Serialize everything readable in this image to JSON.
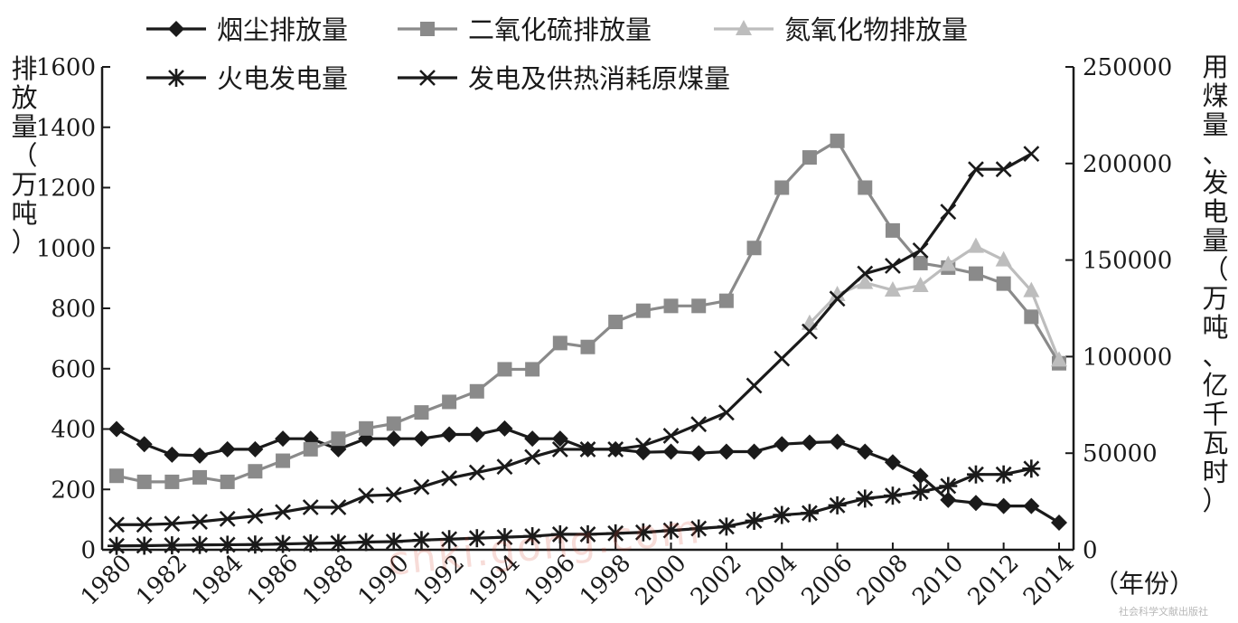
{
  "chart_data": {
    "type": "line",
    "x": [
      1980,
      1981,
      1982,
      1983,
      1984,
      1985,
      1986,
      1987,
      1988,
      1989,
      1990,
      1991,
      1992,
      1993,
      1994,
      1995,
      1996,
      1997,
      1998,
      1999,
      2000,
      2001,
      2002,
      2003,
      2004,
      2005,
      2006,
      2007,
      2008,
      2009,
      2010,
      2011,
      2012,
      2013,
      2014
    ],
    "x_ticks": [
      "1980",
      "1982",
      "1984",
      "1986",
      "1988",
      "1990",
      "1992",
      "1994",
      "1996",
      "1998",
      "2000",
      "2002",
      "2004",
      "2006",
      "2008",
      "2010",
      "2012",
      "2014"
    ],
    "x_unit": "（年份）",
    "left_axis": {
      "label": "排放量（万吨）",
      "ylim": [
        0,
        1600
      ],
      "ticks": [
        "0",
        "200",
        "400",
        "600",
        "800",
        "1000",
        "1200",
        "1400",
        "1600"
      ]
    },
    "right_axis": {
      "label": "用煤量、发电量（万吨、亿千瓦时）",
      "ylim": [
        0,
        250000
      ],
      "ticks": [
        "0",
        "50000",
        "100000",
        "150000",
        "200000",
        "250000"
      ]
    },
    "series": [
      {
        "name": "烟尘排放量",
        "axis": "left",
        "marker": "diamond",
        "color": "#1a1a1a",
        "values": [
          400,
          350,
          315,
          312,
          333,
          333,
          368,
          368,
          333,
          368,
          368,
          368,
          382,
          382,
          402,
          368,
          368,
          333,
          333,
          323,
          325,
          320,
          325,
          325,
          350,
          355,
          358,
          325,
          290,
          245,
          165,
          155,
          145,
          145,
          90
        ]
      },
      {
        "name": "二氧化硫排放量",
        "axis": "left",
        "marker": "square",
        "color": "#8a8a8a",
        "values": [
          245,
          225,
          225,
          240,
          225,
          260,
          295,
          333,
          368,
          402,
          418,
          455,
          490,
          525,
          598,
          598,
          685,
          672,
          755,
          792,
          808,
          808,
          825,
          1000,
          1200,
          1300,
          1355,
          1200,
          1058,
          950,
          935,
          915,
          882,
          772,
          618
        ]
      },
      {
        "name": "氮氧化物排放量",
        "axis": "left",
        "marker": "triangle",
        "color": "#bdbdbd",
        "values": [
          null,
          null,
          null,
          null,
          null,
          null,
          null,
          null,
          null,
          null,
          null,
          null,
          null,
          null,
          null,
          null,
          null,
          null,
          null,
          null,
          null,
          null,
          null,
          null,
          null,
          750,
          845,
          885,
          860,
          875,
          945,
          1005,
          960,
          858,
          628
        ]
      },
      {
        "name": "火电发电量",
        "axis": "right",
        "marker": "asterisk",
        "color": "#1a1a1a",
        "values": [
          2000,
          2100,
          2300,
          2500,
          2600,
          2700,
          3000,
          3300,
          3500,
          4000,
          4200,
          5000,
          5500,
          6000,
          6500,
          7000,
          8000,
          8000,
          8500,
          9000,
          10000,
          11000,
          12000,
          15000,
          18000,
          19000,
          23000,
          26500,
          28000,
          30000,
          33000,
          39000,
          39000,
          42000,
          null
        ]
      },
      {
        "name": "发电及供热消耗原煤量",
        "axis": "right",
        "marker": "cross",
        "color": "#1a1a1a",
        "values": [
          13000,
          13000,
          13500,
          14500,
          16000,
          17500,
          19500,
          22000,
          22000,
          28000,
          28500,
          32500,
          37000,
          40000,
          43000,
          48000,
          52000,
          52000,
          52000,
          54000,
          59000,
          65000,
          71000,
          85000,
          99000,
          113000,
          130000,
          143000,
          147000,
          155000,
          175000,
          197000,
          197000,
          205000,
          null
        ]
      }
    ]
  },
  "watermark": "cnki.gong.com",
  "source_note": "社会科学文献出版社"
}
